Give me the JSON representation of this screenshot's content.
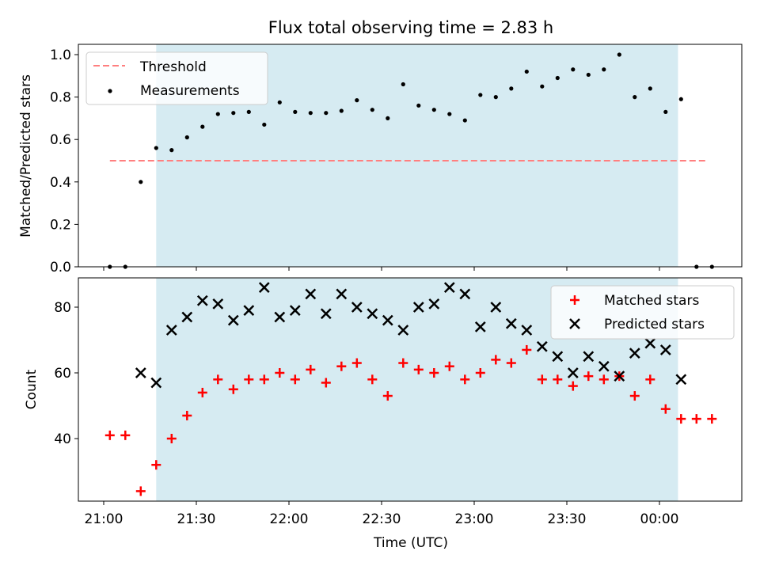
{
  "chart_data": [
    {
      "type": "scatter",
      "title": "Flux total observing time = 2.83 h",
      "xlabel": "",
      "ylabel": "Matched/Predicted stars",
      "ylim": [
        0,
        1.05
      ],
      "yticks": [
        "0.0",
        "0.2",
        "0.4",
        "0.6",
        "0.8",
        "1.0"
      ],
      "grid": false,
      "legend_position": "top-left",
      "shaded_interval": {
        "start": "21:17",
        "end": "00:06",
        "color": "#add8e6"
      },
      "threshold": {
        "name": "Threshold",
        "value": 0.5,
        "start": "21:02",
        "end": "00:15",
        "color": "#ff7f7f",
        "style": "dashed"
      },
      "series": [
        {
          "name": "Measurements",
          "marker": "dot",
          "color": "#000000",
          "points": [
            {
              "x": "21:02",
              "y": 0.0
            },
            {
              "x": "21:07",
              "y": 0.0
            },
            {
              "x": "21:12",
              "y": 0.4
            },
            {
              "x": "21:17",
              "y": 0.56
            },
            {
              "x": "21:22",
              "y": 0.55
            },
            {
              "x": "21:27",
              "y": 0.61
            },
            {
              "x": "21:32",
              "y": 0.66
            },
            {
              "x": "21:37",
              "y": 0.72
            },
            {
              "x": "21:42",
              "y": 0.725
            },
            {
              "x": "21:47",
              "y": 0.73
            },
            {
              "x": "21:52",
              "y": 0.67
            },
            {
              "x": "21:57",
              "y": 0.775
            },
            {
              "x": "22:02",
              "y": 0.73
            },
            {
              "x": "22:07",
              "y": 0.725
            },
            {
              "x": "22:12",
              "y": 0.725
            },
            {
              "x": "22:17",
              "y": 0.735
            },
            {
              "x": "22:22",
              "y": 0.785
            },
            {
              "x": "22:27",
              "y": 0.74
            },
            {
              "x": "22:32",
              "y": 0.7
            },
            {
              "x": "22:37",
              "y": 0.86
            },
            {
              "x": "22:42",
              "y": 0.76
            },
            {
              "x": "22:47",
              "y": 0.74
            },
            {
              "x": "22:52",
              "y": 0.72
            },
            {
              "x": "22:57",
              "y": 0.69
            },
            {
              "x": "23:02",
              "y": 0.81
            },
            {
              "x": "23:07",
              "y": 0.8
            },
            {
              "x": "23:12",
              "y": 0.84
            },
            {
              "x": "23:17",
              "y": 0.92
            },
            {
              "x": "23:22",
              "y": 0.85
            },
            {
              "x": "23:27",
              "y": 0.89
            },
            {
              "x": "23:32",
              "y": 0.93
            },
            {
              "x": "23:37",
              "y": 0.905
            },
            {
              "x": "23:42",
              "y": 0.93
            },
            {
              "x": "23:47",
              "y": 1.0
            },
            {
              "x": "23:52",
              "y": 0.8
            },
            {
              "x": "23:57",
              "y": 0.84
            },
            {
              "x": "00:02",
              "y": 0.73
            },
            {
              "x": "00:07",
              "y": 0.79
            },
            {
              "x": "00:12",
              "y": 0.0
            },
            {
              "x": "00:17",
              "y": 0.0
            }
          ]
        }
      ]
    },
    {
      "type": "scatter",
      "title": "",
      "xlabel": "Time (UTC)",
      "ylabel": "Count",
      "ylim": [
        21,
        90
      ],
      "yticks": [
        "40",
        "60",
        "80"
      ],
      "xticks": [
        "21:00",
        "21:30",
        "22:00",
        "22:30",
        "23:00",
        "23:30",
        "00:00"
      ],
      "grid": false,
      "legend_position": "top-right",
      "shaded_interval": {
        "start": "21:17",
        "end": "00:06",
        "color": "#add8e6"
      },
      "series": [
        {
          "name": "Matched stars",
          "marker": "plus",
          "color": "#ff0000",
          "points": [
            {
              "x": "21:02",
              "y": 41
            },
            {
              "x": "21:07",
              "y": 41
            },
            {
              "x": "21:12",
              "y": 24
            },
            {
              "x": "21:17",
              "y": 32
            },
            {
              "x": "21:22",
              "y": 40
            },
            {
              "x": "21:27",
              "y": 47
            },
            {
              "x": "21:32",
              "y": 54
            },
            {
              "x": "21:37",
              "y": 58
            },
            {
              "x": "21:42",
              "y": 55
            },
            {
              "x": "21:47",
              "y": 58
            },
            {
              "x": "21:52",
              "y": 58
            },
            {
              "x": "21:57",
              "y": 60
            },
            {
              "x": "22:02",
              "y": 58
            },
            {
              "x": "22:07",
              "y": 61
            },
            {
              "x": "22:12",
              "y": 57
            },
            {
              "x": "22:17",
              "y": 62
            },
            {
              "x": "22:22",
              "y": 63
            },
            {
              "x": "22:27",
              "y": 58
            },
            {
              "x": "22:32",
              "y": 53
            },
            {
              "x": "22:37",
              "y": 63
            },
            {
              "x": "22:42",
              "y": 61
            },
            {
              "x": "22:47",
              "y": 60
            },
            {
              "x": "22:52",
              "y": 62
            },
            {
              "x": "22:57",
              "y": 58
            },
            {
              "x": "23:02",
              "y": 60
            },
            {
              "x": "23:07",
              "y": 64
            },
            {
              "x": "23:12",
              "y": 63
            },
            {
              "x": "23:17",
              "y": 67
            },
            {
              "x": "23:22",
              "y": 58
            },
            {
              "x": "23:27",
              "y": 58
            },
            {
              "x": "23:32",
              "y": 56
            },
            {
              "x": "23:37",
              "y": 59
            },
            {
              "x": "23:42",
              "y": 58
            },
            {
              "x": "23:47",
              "y": 59
            },
            {
              "x": "23:52",
              "y": 53
            },
            {
              "x": "23:57",
              "y": 58
            },
            {
              "x": "00:02",
              "y": 49
            },
            {
              "x": "00:07",
              "y": 46
            },
            {
              "x": "00:12",
              "y": 46
            },
            {
              "x": "00:17",
              "y": 46
            }
          ]
        },
        {
          "name": "Predicted stars",
          "marker": "x",
          "color": "#000000",
          "points": [
            {
              "x": "21:12",
              "y": 60
            },
            {
              "x": "21:17",
              "y": 57
            },
            {
              "x": "21:22",
              "y": 73
            },
            {
              "x": "21:27",
              "y": 77
            },
            {
              "x": "21:32",
              "y": 82
            },
            {
              "x": "21:37",
              "y": 81
            },
            {
              "x": "21:42",
              "y": 76
            },
            {
              "x": "21:47",
              "y": 79
            },
            {
              "x": "21:52",
              "y": 86
            },
            {
              "x": "21:57",
              "y": 77
            },
            {
              "x": "22:02",
              "y": 79
            },
            {
              "x": "22:07",
              "y": 84
            },
            {
              "x": "22:12",
              "y": 78
            },
            {
              "x": "22:17",
              "y": 84
            },
            {
              "x": "22:22",
              "y": 80
            },
            {
              "x": "22:27",
              "y": 78
            },
            {
              "x": "22:32",
              "y": 76
            },
            {
              "x": "22:37",
              "y": 73
            },
            {
              "x": "22:42",
              "y": 80
            },
            {
              "x": "22:47",
              "y": 81
            },
            {
              "x": "22:52",
              "y": 86
            },
            {
              "x": "22:57",
              "y": 84
            },
            {
              "x": "23:02",
              "y": 74
            },
            {
              "x": "23:07",
              "y": 80
            },
            {
              "x": "23:12",
              "y": 75
            },
            {
              "x": "23:17",
              "y": 73
            },
            {
              "x": "23:22",
              "y": 68
            },
            {
              "x": "23:27",
              "y": 65
            },
            {
              "x": "23:32",
              "y": 60
            },
            {
              "x": "23:37",
              "y": 65
            },
            {
              "x": "23:42",
              "y": 62
            },
            {
              "x": "23:47",
              "y": 59
            },
            {
              "x": "23:52",
              "y": 66
            },
            {
              "x": "23:57",
              "y": 69
            },
            {
              "x": "00:02",
              "y": 67
            },
            {
              "x": "00:07",
              "y": 58
            }
          ]
        }
      ]
    }
  ]
}
